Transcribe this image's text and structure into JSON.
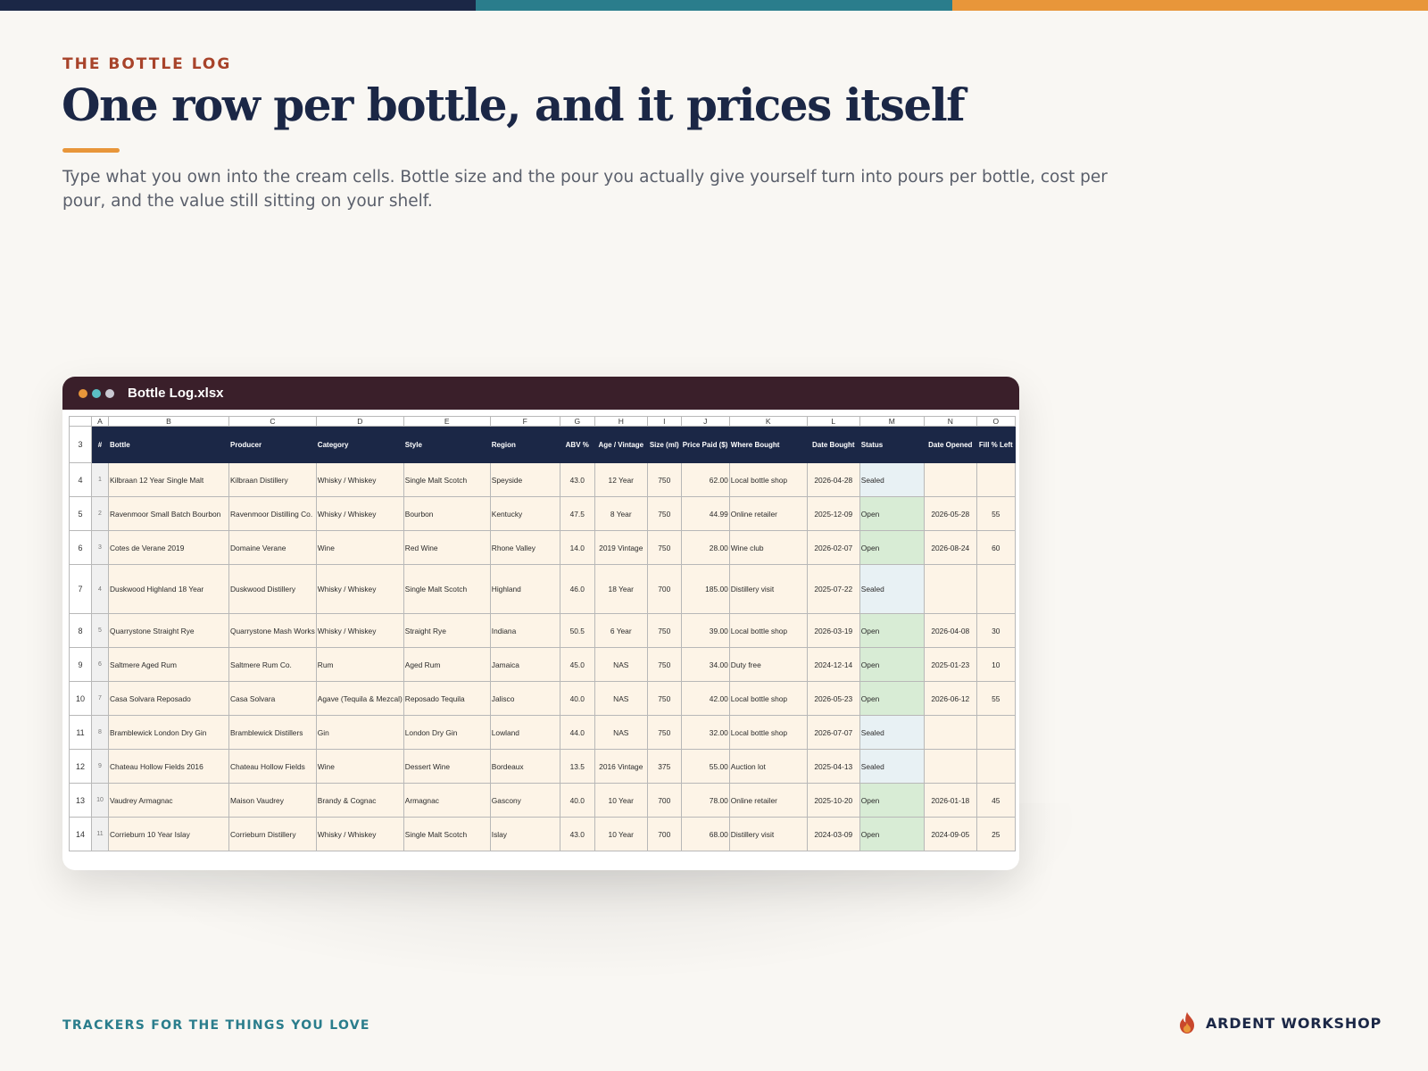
{
  "brand_colors": {
    "navy": "#1b2746",
    "teal": "#2a7d8c",
    "orange": "#e8963a",
    "rust": "#a8432a",
    "window_bar": "#3a1f2a"
  },
  "eyebrow": "THE BOTTLE LOG",
  "headline": "One row per bottle, and it prices itself",
  "subtitle": "Type what you own into the cream cells. Bottle size and the pour you actually give yourself turn into pours per bottle, cost per pour, and the value still sitting on your shelf.",
  "window": {
    "title": "Bottle Log.xlsx"
  },
  "sheet": {
    "column_letters": [
      "A",
      "B",
      "C",
      "D",
      "E",
      "F",
      "G",
      "H",
      "I",
      "J",
      "K",
      "L",
      "M",
      "N",
      "O"
    ],
    "header_row_number": "3",
    "headers": [
      "#",
      "Bottle",
      "Producer",
      "Category",
      "Style",
      "Region",
      "ABV %",
      "Age / Vintage",
      "Size (ml)",
      "Price Paid ($)",
      "Where Bought",
      "Date Bought",
      "Status",
      "Date Opened",
      "Fill % Left"
    ],
    "rows": [
      {
        "row": "4",
        "cells": [
          "1",
          "Kilbraan 12 Year Single Malt",
          "Kilbraan Distillery",
          "Whisky / Whiskey",
          "Single Malt Scotch",
          "Speyside",
          "43.0",
          "12 Year",
          "750",
          "62.00",
          "Local bottle shop",
          "2026-04-28",
          "Sealed",
          "",
          ""
        ]
      },
      {
        "row": "5",
        "cells": [
          "2",
          "Ravenmoor Small Batch Bourbon",
          "Ravenmoor Distilling Co.",
          "Whisky / Whiskey",
          "Bourbon",
          "Kentucky",
          "47.5",
          "8 Year",
          "750",
          "44.99",
          "Online retailer",
          "2025-12-09",
          "Open",
          "2026-05-28",
          "55"
        ]
      },
      {
        "row": "6",
        "cells": [
          "3",
          "Cotes de Verane 2019",
          "Domaine Verane",
          "Wine",
          "Red Wine",
          "Rhone Valley",
          "14.0",
          "2019 Vintage",
          "750",
          "28.00",
          "Wine club",
          "2026-02-07",
          "Open",
          "2026-08-24",
          "60"
        ]
      },
      {
        "row": "7",
        "cells": [
          "4",
          "Duskwood Highland 18 Year",
          "Duskwood Distillery",
          "Whisky / Whiskey",
          "Single Malt Scotch",
          "Highland",
          "46.0",
          "18 Year",
          "700",
          "185.00",
          "Distillery visit",
          "2025-07-22",
          "Sealed",
          "",
          ""
        ]
      },
      {
        "row": "8",
        "cells": [
          "5",
          "Quarrystone Straight Rye",
          "Quarrystone Mash Works",
          "Whisky / Whiskey",
          "Straight Rye",
          "Indiana",
          "50.5",
          "6 Year",
          "750",
          "39.00",
          "Local bottle shop",
          "2026-03-19",
          "Open",
          "2026-04-08",
          "30"
        ]
      },
      {
        "row": "9",
        "cells": [
          "6",
          "Saltmere Aged Rum",
          "Saltmere Rum Co.",
          "Rum",
          "Aged Rum",
          "Jamaica",
          "45.0",
          "NAS",
          "750",
          "34.00",
          "Duty free",
          "2024-12-14",
          "Open",
          "2025-01-23",
          "10"
        ]
      },
      {
        "row": "10",
        "cells": [
          "7",
          "Casa Solvara Reposado",
          "Casa Solvara",
          "Agave (Tequila & Mezcal)",
          "Reposado Tequila",
          "Jalisco",
          "40.0",
          "NAS",
          "750",
          "42.00",
          "Local bottle shop",
          "2026-05-23",
          "Open",
          "2026-06-12",
          "55"
        ]
      },
      {
        "row": "11",
        "cells": [
          "8",
          "Bramblewick London Dry Gin",
          "Bramblewick Distillers",
          "Gin",
          "London Dry Gin",
          "Lowland",
          "44.0",
          "NAS",
          "750",
          "32.00",
          "Local bottle shop",
          "2026-07-07",
          "Sealed",
          "",
          ""
        ]
      },
      {
        "row": "12",
        "cells": [
          "9",
          "Chateau Hollow Fields 2016",
          "Chateau Hollow Fields",
          "Wine",
          "Dessert Wine",
          "Bordeaux",
          "13.5",
          "2016 Vintage",
          "375",
          "55.00",
          "Auction lot",
          "2025-04-13",
          "Sealed",
          "",
          ""
        ]
      },
      {
        "row": "13",
        "cells": [
          "10",
          "Vaudrey Armagnac",
          "Maison Vaudrey",
          "Brandy & Cognac",
          "Armagnac",
          "Gascony",
          "40.0",
          "10 Year",
          "700",
          "78.00",
          "Online retailer",
          "2025-10-20",
          "Open",
          "2026-01-18",
          "45"
        ]
      },
      {
        "row": "14",
        "cells": [
          "11",
          "Corrieburn 10 Year Islay",
          "Corrieburn Distillery",
          "Whisky / Whiskey",
          "Single Malt Scotch",
          "Islay",
          "43.0",
          "10 Year",
          "700",
          "68.00",
          "Distillery visit",
          "2024-03-09",
          "Open",
          "2024-09-05",
          "25"
        ]
      }
    ]
  },
  "footer": {
    "tagline": "TRACKERS FOR THE THINGS YOU LOVE",
    "brand": "ARDENT WORKSHOP",
    "brand_icon": "flame-icon"
  }
}
